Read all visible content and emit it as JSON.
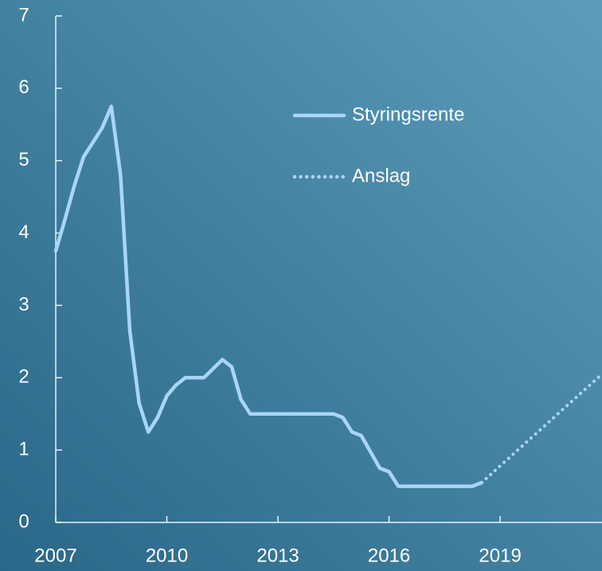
{
  "chart_data": {
    "type": "line",
    "series": [
      {
        "name": "Styringsrente",
        "color": "#a9d6f5",
        "style": "solid",
        "x": [
          2007.0,
          2007.2,
          2007.5,
          2007.75,
          2008.0,
          2008.25,
          2008.5,
          2008.75,
          2009.0,
          2009.25,
          2009.5,
          2009.75,
          2010.0,
          2010.25,
          2010.5,
          2011.0,
          2011.25,
          2011.5,
          2011.75,
          2012.0,
          2012.25,
          2014.5,
          2014.75,
          2015.0,
          2015.25,
          2015.75,
          2016.0,
          2016.25,
          2018.25,
          2018.5
        ],
        "values": [
          3.75,
          4.1,
          4.65,
          5.05,
          5.25,
          5.45,
          5.75,
          4.8,
          2.65,
          1.65,
          1.25,
          1.45,
          1.75,
          1.9,
          2.0,
          2.0,
          2.125,
          2.25,
          2.15,
          1.7,
          1.5,
          1.5,
          1.45,
          1.25,
          1.2,
          0.75,
          0.7,
          0.5,
          0.5,
          0.55
        ]
      },
      {
        "name": "Anslag",
        "color": "#a9d6f5",
        "style": "dotted",
        "x": [
          2018.5,
          2021.75
        ],
        "values": [
          0.55,
          2.05
        ]
      }
    ],
    "xlim": [
      2007,
      2021.75
    ],
    "xticks": [
      2007,
      2010,
      2013,
      2016,
      2019
    ],
    "ylim": [
      0,
      7
    ],
    "yticks": [
      0,
      1,
      2,
      3,
      4,
      5,
      6,
      7
    ],
    "legend": "upper right"
  }
}
